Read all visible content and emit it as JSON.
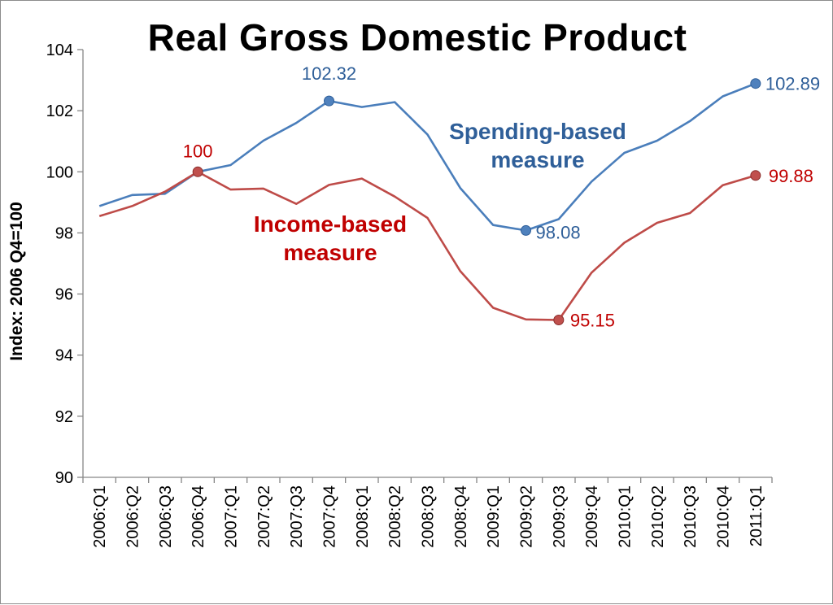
{
  "chart_data": {
    "type": "line",
    "title": "Real Gross Domestic Product",
    "ylabel": "Index: 2006 Q4=100",
    "xlabel": "",
    "ylim": [
      90,
      104
    ],
    "yticks": [
      90,
      92,
      94,
      96,
      98,
      100,
      102,
      104
    ],
    "grid": false,
    "categories": [
      "2006:Q1",
      "2006:Q2",
      "2006:Q3",
      "2006:Q4",
      "2007:Q1",
      "2007:Q2",
      "2007:Q3",
      "2007:Q4",
      "2008:Q1",
      "2008:Q2",
      "2008:Q3",
      "2008:Q4",
      "2009:Q1",
      "2009:Q2",
      "2009:Q3",
      "2009:Q4",
      "2010:Q1",
      "2010:Q2",
      "2010:Q3",
      "2010:Q4",
      "2011:Q1"
    ],
    "series": [
      {
        "name": "Spending-based measure",
        "label_lines": [
          "Spending-based",
          "measure"
        ],
        "color": "#4a7ebb",
        "label_color": "#2f5f99",
        "marker_color": "#4f81bd",
        "values": [
          98.88,
          99.24,
          99.28,
          100.0,
          100.22,
          101.02,
          101.6,
          102.32,
          102.12,
          102.28,
          101.22,
          99.47,
          98.26,
          98.08,
          98.45,
          99.68,
          100.62,
          101.02,
          101.66,
          102.47,
          102.89
        ],
        "marked": [
          {
            "index": 7,
            "label": "102.32"
          },
          {
            "index": 13,
            "label": "98.08"
          },
          {
            "index": 20,
            "label": "102.89"
          }
        ]
      },
      {
        "name": "Income-based measure",
        "label_lines": [
          "Income-based",
          "measure"
        ],
        "color": "#be4b48",
        "label_color": "#c00000",
        "marker_color": "#c0504d",
        "values": [
          98.55,
          98.88,
          99.35,
          100.0,
          99.42,
          99.45,
          98.95,
          99.57,
          99.78,
          99.19,
          98.49,
          96.75,
          95.55,
          95.17,
          95.15,
          96.7,
          97.68,
          98.33,
          98.65,
          99.56,
          99.88
        ],
        "marked": [
          {
            "index": 3,
            "label": "100"
          },
          {
            "index": 14,
            "label": "95.15"
          },
          {
            "index": 20,
            "label": "99.88"
          }
        ]
      }
    ]
  }
}
